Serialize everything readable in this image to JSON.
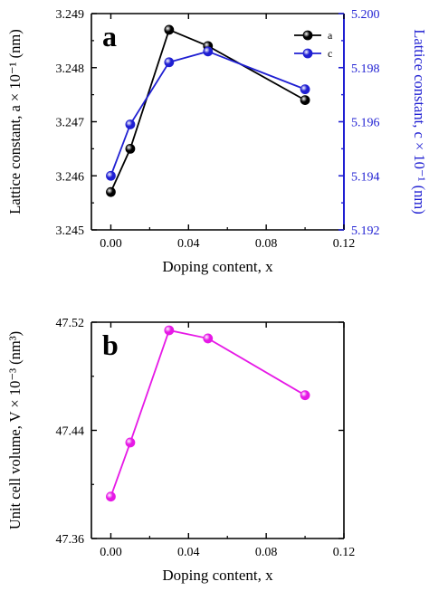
{
  "chart_data": [
    {
      "type": "line",
      "panel_label": "a",
      "x": [
        0.0,
        0.01,
        0.03,
        0.05,
        0.1
      ],
      "xlabel": "Doping content, x",
      "xlim": [
        -0.01,
        0.12
      ],
      "xticks": [
        "0.00",
        "0.04",
        "0.08",
        "0.12"
      ],
      "xtick_values": [
        0.0,
        0.04,
        0.08,
        0.12
      ],
      "ylabel_left": "Lattice constant, a × 10⁻¹ (nm)",
      "ylim_left": [
        3.245,
        3.249
      ],
      "yticks_left": [
        "3.245",
        "3.246",
        "3.247",
        "3.248",
        "3.249"
      ],
      "ytick_values_left": [
        3.245,
        3.246,
        3.247,
        3.248,
        3.249
      ],
      "ylabel_right": "Lattice constant, c × 10⁻¹ (nm)",
      "ylim_right": [
        5.192,
        5.2
      ],
      "yticks_right": [
        "5.192",
        "5.194",
        "5.196",
        "5.198",
        "5.200"
      ],
      "ytick_values_right": [
        5.192,
        5.194,
        5.196,
        5.198,
        5.2
      ],
      "series": [
        {
          "name": "a",
          "axis": "left",
          "color": "#000000",
          "values": [
            3.2457,
            3.2465,
            3.2487,
            3.2484,
            3.2474
          ]
        },
        {
          "name": "c",
          "axis": "right",
          "color": "#1f1fd2",
          "values": [
            5.194,
            5.1959,
            5.1982,
            5.1986,
            5.1972
          ]
        }
      ],
      "legend_position": "top-right",
      "grid": false
    },
    {
      "type": "line",
      "panel_label": "b",
      "x": [
        0.0,
        0.01,
        0.03,
        0.05,
        0.1
      ],
      "xlabel": "Doping content, x",
      "xlim": [
        -0.01,
        0.12
      ],
      "xticks": [
        "0.00",
        "0.04",
        "0.08",
        "0.12"
      ],
      "xtick_values": [
        0.0,
        0.04,
        0.08,
        0.12
      ],
      "ylabel": "Unit cell volume, V × 10⁻³ (nm³)",
      "ylim": [
        47.36,
        47.52
      ],
      "yticks": [
        "47.36",
        "47.44",
        "47.52"
      ],
      "ytick_values": [
        47.36,
        47.44,
        47.52
      ],
      "series": [
        {
          "name": "",
          "color": "#e619e6",
          "values": [
            47.391,
            47.431,
            47.514,
            47.508,
            47.466
          ]
        }
      ],
      "grid": false
    }
  ]
}
